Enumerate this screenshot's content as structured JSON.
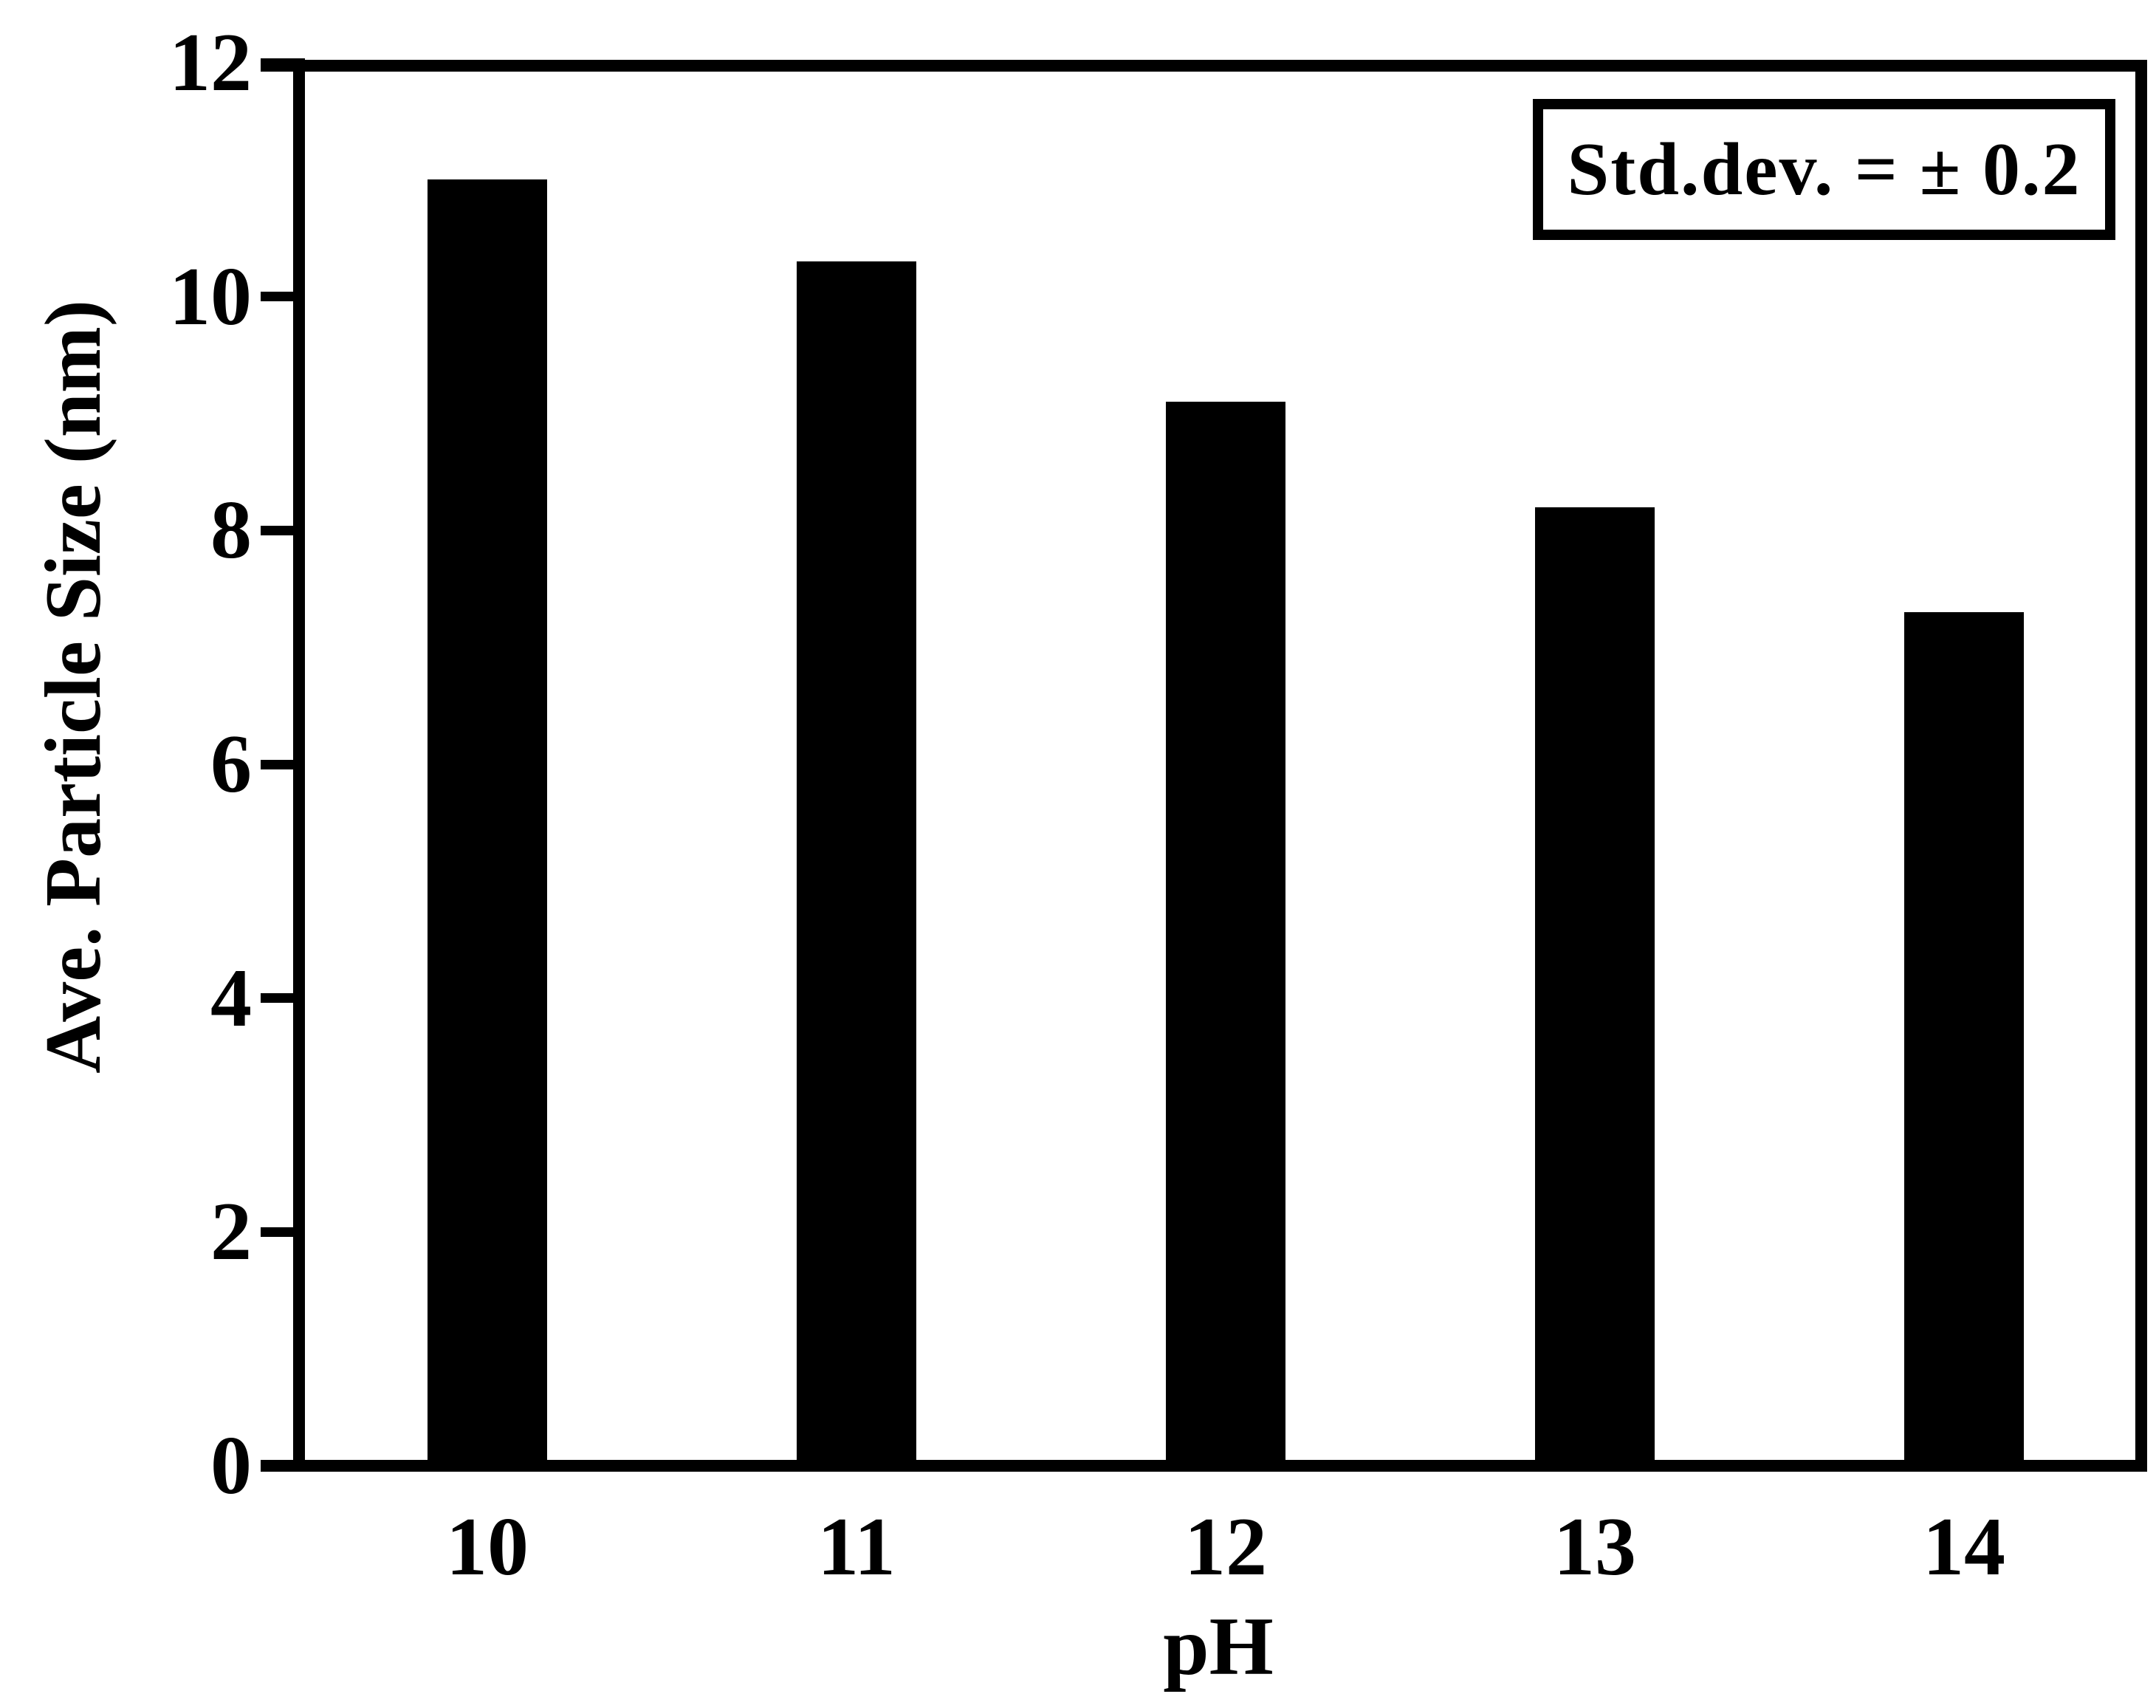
{
  "chart_data": {
    "type": "bar",
    "title": "",
    "categories": [
      "10",
      "11",
      "12",
      "13",
      "14"
    ],
    "values": [
      11.0,
      10.3,
      9.1,
      8.2,
      7.3
    ],
    "series_name": "Ave. Particle Size",
    "xlabel": "pH",
    "ylabel": "Ave. Particle Size (nm)",
    "ylim": [
      0,
      12
    ],
    "yticks": [
      0,
      2,
      4,
      6,
      8,
      10,
      12
    ],
    "grid": false,
    "legend_position": "top-right",
    "bar_color": "#000000",
    "axis_color": "#000000",
    "background_color": "#ffffff",
    "annotation": {
      "text": "Std.dev. = ± 0.2",
      "boxed": true,
      "position": "top-right"
    }
  }
}
